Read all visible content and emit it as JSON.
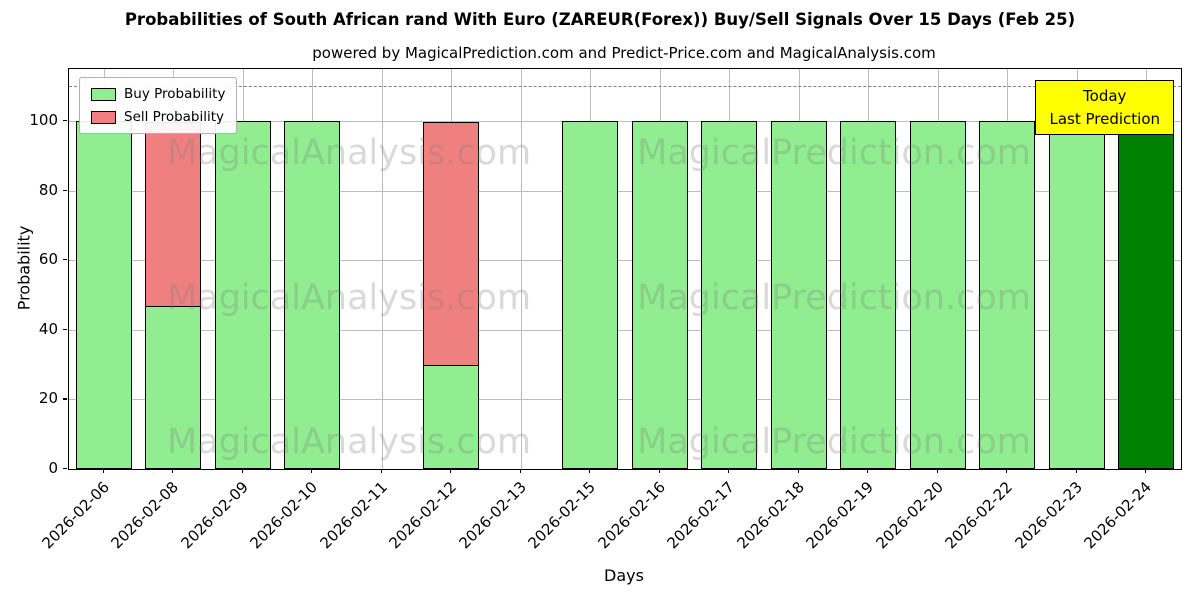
{
  "title": "Probabilities of South African rand With Euro (ZAREUR(Forex)) Buy/Sell Signals Over 15 Days (Feb 25)",
  "subtitle": "powered by MagicalPrediction.com and Predict-Price.com and MagicalAnalysis.com",
  "watermarks": [
    "MagicalAnalysis.com",
    "MagicalPrediction.com"
  ],
  "chart_data": {
    "type": "bar",
    "stacked": true,
    "title": "Probabilities of South African rand With Euro (ZAREUR(Forex)) Buy/Sell Signals Over 15 Days (Feb 25)",
    "xlabel": "Days",
    "ylabel": "Probability",
    "categories": [
      "2026-02-06",
      "2026-02-08",
      "2026-02-09",
      "2026-02-10",
      "2026-02-11",
      "2026-02-12",
      "2026-02-13",
      "2026-02-15",
      "2026-02-16",
      "2026-02-17",
      "2026-02-18",
      "2026-02-19",
      "2026-02-20",
      "2026-02-22",
      "2026-02-23",
      "2026-02-24"
    ],
    "series": [
      {
        "name": "Buy Probability",
        "color": "#90EE90",
        "values": [
          100,
          47,
          100,
          100,
          0,
          30,
          0,
          100,
          100,
          100,
          100,
          100,
          100,
          100,
          100,
          100
        ]
      },
      {
        "name": "Sell Probability",
        "color": "#F08080",
        "values": [
          0,
          53,
          0,
          0,
          0,
          70,
          0,
          0,
          0,
          0,
          0,
          0,
          0,
          0,
          0,
          0
        ]
      }
    ],
    "today": {
      "index": 15,
      "bar_color": "#008000",
      "box_color": "#FFFF00",
      "label_lines": [
        "Today",
        "Last Prediction"
      ]
    },
    "yticks": [
      0,
      20,
      40,
      60,
      80,
      100
    ],
    "ylim": [
      0,
      115
    ],
    "dashed_line_y": 110,
    "grid": true,
    "legend_position": "upper left"
  }
}
